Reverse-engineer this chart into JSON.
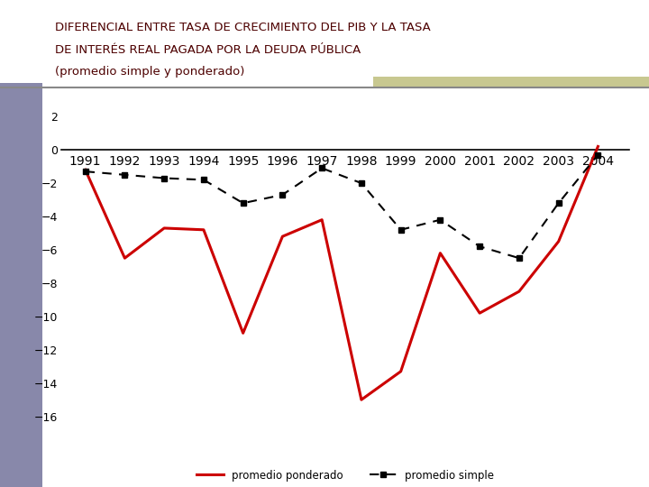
{
  "title_line1": "DIFERENCIAL ENTRE TASA DE CRECIMIENTO DEL PIB Y LA TASA",
  "title_line2": "DE INTERÉS REAL PAGADA POR LA DEUDA PÚBLICA",
  "title_line3": "(promedio simple y ponderado)",
  "years": [
    1991,
    1992,
    1993,
    1994,
    1995,
    1996,
    1997,
    1998,
    1999,
    2000,
    2001,
    2002,
    2003,
    2004
  ],
  "ponderado": [
    -1.2,
    -6.5,
    -4.7,
    -4.8,
    -11.0,
    -5.2,
    -4.2,
    -15.0,
    -13.3,
    -6.2,
    -9.8,
    -8.5,
    -5.5,
    0.2
  ],
  "simple": [
    -1.3,
    -1.5,
    -1.7,
    -1.8,
    -3.2,
    -2.7,
    -1.1,
    -2.0,
    -4.8,
    -4.2,
    -5.8,
    -6.5,
    -3.2,
    -0.3
  ],
  "ylim": [
    -16,
    3
  ],
  "yticks": [
    2,
    0,
    -2,
    -4,
    -6,
    -8,
    -10,
    -12,
    -14,
    -16
  ],
  "bg_color": "#ffffff",
  "title_color": "#4d0000",
  "ponderado_color": "#cc0000",
  "simple_color": "#000000",
  "accent_bar_color": "#c8c890",
  "left_bar_color": "#8888aa",
  "separator_color": "#888888",
  "legend_ponderado": "promedio ponderado",
  "legend_simple": "promedio simple"
}
